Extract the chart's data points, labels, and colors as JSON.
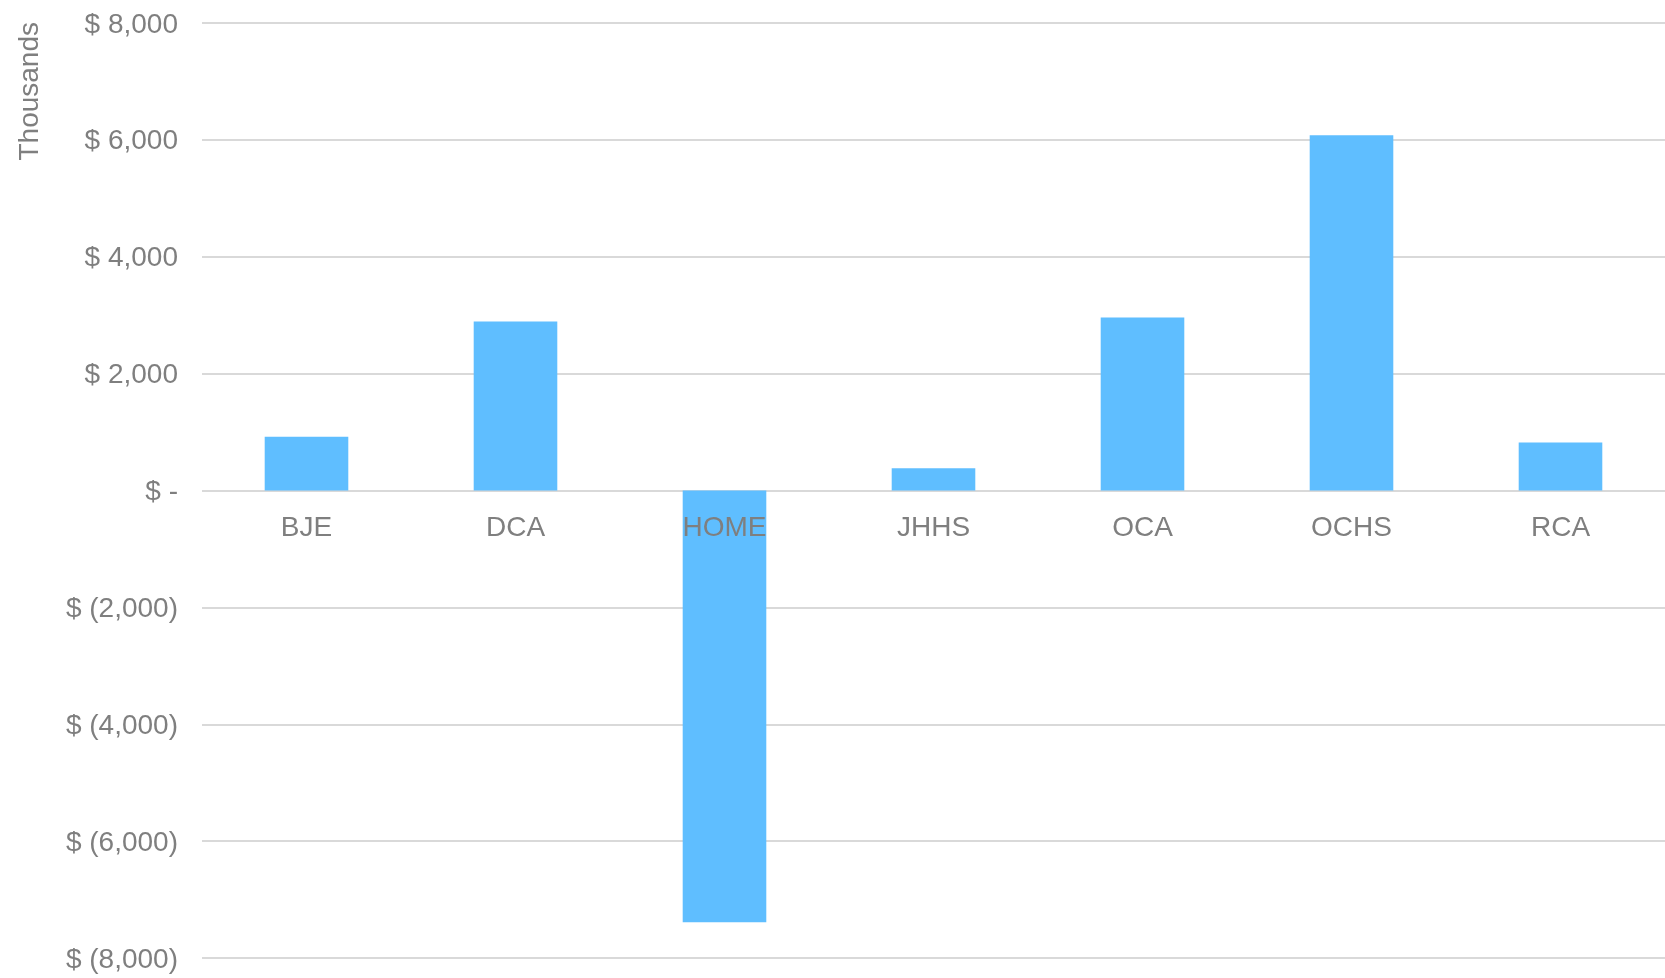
{
  "chart_data": {
    "type": "bar",
    "ylabel": "Thousands",
    "categories": [
      "BJE",
      "DCA",
      "HOME",
      "JHHS",
      "OCA",
      "OCHS",
      "RCA"
    ],
    "values": [
      920,
      2890,
      -7390,
      380,
      2960,
      6080,
      820
    ],
    "color": "#5fbeff",
    "ylim": [
      -8000,
      8000
    ],
    "yticks": [
      {
        "value": -8000,
        "label": "$ (8,000)"
      },
      {
        "value": -6000,
        "label": "$ (6,000)"
      },
      {
        "value": -4000,
        "label": "$ (4,000)"
      },
      {
        "value": -2000,
        "label": "$ (2,000)"
      },
      {
        "value": 0,
        "label": "$ -"
      },
      {
        "value": 2000,
        "label": "$ 2,000"
      },
      {
        "value": 4000,
        "label": "$ 4,000"
      },
      {
        "value": 6000,
        "label": "$ 6,000"
      },
      {
        "value": 8000,
        "label": "$ 8,000"
      }
    ],
    "grid": "y"
  }
}
